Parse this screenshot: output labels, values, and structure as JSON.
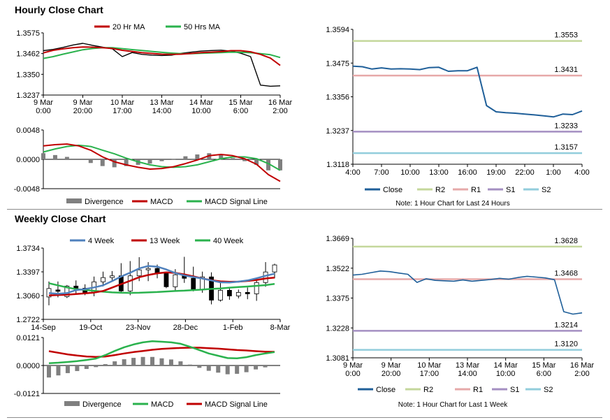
{
  "titles": {
    "hourly": "Hourly Close Chart",
    "weekly": "Weekly Close Chart"
  },
  "colors": {
    "close": "#1f5f99",
    "r2": "#c4d79b",
    "r1": "#e6a9a9",
    "s1": "#a48fc2",
    "s2": "#92cddc",
    "ma20": "#c00000",
    "ma50": "#2ab24d",
    "week4": "#4f81bd",
    "week13": "#c00000",
    "week40": "#2ab24d",
    "divergence": "#7f7f7f",
    "candle": "#000000"
  },
  "charts": {
    "hourly_price": {
      "type": "line",
      "ylim": [
        1.3237,
        1.3575
      ],
      "yticks": [
        "1.3575",
        "1.3462",
        "1.3350",
        "1.3237"
      ],
      "xticks": [
        {
          "l1": "9 Mar",
          "l2": "0:00"
        },
        {
          "l1": "9 Mar",
          "l2": "20:00"
        },
        {
          "l1": "10 Mar",
          "l2": "17:00"
        },
        {
          "l1": "13 Mar",
          "l2": "14:00"
        },
        {
          "l1": "14 Mar",
          "l2": "10:00"
        },
        {
          "l1": "15 Mar",
          "l2": "6:00"
        },
        {
          "l1": "16 Mar",
          "l2": "2:00"
        }
      ],
      "legend": [
        "20 Hr MA",
        "50 Hrs MA"
      ],
      "ma20": [
        1.3466,
        1.348,
        1.3488,
        1.3494,
        1.3498,
        1.3497,
        1.3494,
        1.349,
        1.348,
        1.3474,
        1.3467,
        1.3463,
        1.3459,
        1.3458,
        1.3459,
        1.3463,
        1.3468,
        1.347,
        1.3473,
        1.3478,
        1.3478,
        1.3472,
        1.3458,
        1.3438,
        1.3398
      ],
      "ma50": [
        1.3436,
        1.3446,
        1.3459,
        1.3471,
        1.3483,
        1.349,
        1.3494,
        1.3494,
        1.3489,
        1.3484,
        1.3479,
        1.3474,
        1.3469,
        1.3465,
        1.3462,
        1.3462,
        1.3464,
        1.3466,
        1.3468,
        1.347,
        1.3469,
        1.3467,
        1.3462,
        1.3456,
        1.3441
      ],
      "close": [
        1.3478,
        1.3485,
        1.3496,
        1.3509,
        1.3518,
        1.3507,
        1.3497,
        1.3488,
        1.3446,
        1.3468,
        1.3458,
        1.3454,
        1.3452,
        1.3454,
        1.3464,
        1.347,
        1.3476,
        1.3479,
        1.3481,
        1.3476,
        1.3464,
        1.3446,
        1.3291,
        1.3285,
        1.3287
      ]
    },
    "hourly_macd": {
      "type": "line",
      "ylim": [
        -0.0048,
        0.0048
      ],
      "yticks": [
        "0.0048",
        "0.0000",
        "-0.0048"
      ],
      "legend": [
        "Divergence",
        "MACD",
        "MACD Signal Line"
      ],
      "macd": [
        0.0022,
        0.0024,
        0.0025,
        0.0022,
        0.0015,
        0.0004,
        -0.0004,
        -0.0009,
        -0.0013,
        -0.0016,
        -0.0015,
        -0.0012,
        -0.0007,
        -0.0001,
        0.0006,
        0.0008,
        0.0006,
        0.0001,
        -0.0008,
        -0.0025,
        -0.0036
      ],
      "signal": [
        0.0012,
        0.0017,
        0.0021,
        0.0023,
        0.0021,
        0.0015,
        0.0009,
        0.0002,
        -0.0004,
        -0.0009,
        -0.0012,
        -0.0013,
        -0.0012,
        -0.0009,
        -0.0004,
        0.0001,
        0.0004,
        0.0004,
        0.0001,
        -0.0007,
        -0.0018
      ],
      "divergence": [
        0.001,
        0.0007,
        0.0004,
        -0.0001,
        -0.0006,
        -0.0011,
        -0.0013,
        -0.0011,
        -0.0009,
        -0.0007,
        -0.0003,
        0.0001,
        0.0005,
        0.0008,
        0.001,
        0.0007,
        0.0002,
        -0.0003,
        -0.0009,
        -0.0018,
        -0.0018
      ]
    },
    "hourly_24h": {
      "type": "line",
      "ylim": [
        1.3118,
        1.3594
      ],
      "yticks": [
        "1.3594",
        "1.3475",
        "1.3356",
        "1.3237",
        "1.3118"
      ],
      "xticks": [
        "4:00",
        "7:00",
        "10:00",
        "13:00",
        "16:00",
        "19:00",
        "22:00",
        "1:00",
        "4:00"
      ],
      "levels": [
        {
          "key": "r2",
          "value": 1.3553,
          "label": "1.3553"
        },
        {
          "key": "r1",
          "value": 1.3431,
          "label": "1.3431"
        },
        {
          "key": "s1",
          "value": 1.3233,
          "label": "1.3233"
        },
        {
          "key": "s2",
          "value": 1.3157,
          "label": "1.3157"
        }
      ],
      "close": [
        1.3464,
        1.3462,
        1.3454,
        1.3458,
        1.3454,
        1.3455,
        1.3454,
        1.3452,
        1.3459,
        1.346,
        1.3446,
        1.3448,
        1.3448,
        1.346,
        1.3325,
        1.3303,
        1.33,
        1.3298,
        1.3295,
        1.3292,
        1.3289,
        1.3285,
        1.3295,
        1.3293,
        1.3306
      ],
      "legend": [
        "Close",
        "R2",
        "R1",
        "S1",
        "S2"
      ],
      "note": "Note: 1 Hour Chart for Last 24 Hours"
    },
    "weekly_price": {
      "type": "line",
      "ylim": [
        1.2722,
        1.3734
      ],
      "yticks": [
        "1.3734",
        "1.3397",
        "1.3060",
        "1.2722"
      ],
      "xticks": [
        "14-Sep",
        "19-Oct",
        "23-Nov",
        "28-Dec",
        "1-Feb",
        "8-Mar"
      ],
      "legend": [
        "4 Week",
        "13 Week",
        "40 Week"
      ],
      "week4": [
        1.3095,
        1.3085,
        1.3095,
        1.3138,
        1.3152,
        1.3175,
        1.3205,
        1.3265,
        1.333,
        1.3385,
        1.3445,
        1.348,
        1.347,
        1.343,
        1.338,
        1.3345,
        1.3322,
        1.3302,
        1.3275,
        1.3248,
        1.3245,
        1.3258,
        1.3275,
        1.3305,
        1.334,
        1.337
      ],
      "week13": [
        1.3062,
        1.3068,
        1.3072,
        1.3082,
        1.3092,
        1.3102,
        1.3125,
        1.3172,
        1.3222,
        1.327,
        1.332,
        1.3352,
        1.3376,
        1.339,
        1.3382,
        1.336,
        1.3332,
        1.3302,
        1.3278,
        1.3262,
        1.3255,
        1.3258,
        1.3268,
        1.3282,
        1.3302,
        1.3315
      ],
      "week40": [
        1.3235,
        1.3205,
        1.3175,
        1.3152,
        1.314,
        1.3128,
        1.3115,
        1.3105,
        1.31,
        1.3098,
        1.31,
        1.3105,
        1.311,
        1.3118,
        1.3125,
        1.313,
        1.3138,
        1.3145,
        1.3155,
        1.3162,
        1.3172,
        1.318,
        1.3188,
        1.3198,
        1.3208,
        1.3225
      ],
      "candles": [
        [
          1.304,
          1.316,
          1.2922,
          1.326
        ],
        [
          1.314,
          1.312,
          1.3035,
          1.326
        ],
        [
          1.3045,
          1.3195,
          1.3025,
          1.321
        ],
        [
          1.3195,
          1.3165,
          1.309,
          1.3275
        ],
        [
          1.3165,
          1.3098,
          1.3065,
          1.322
        ],
        [
          1.31,
          1.3255,
          1.305,
          1.333
        ],
        [
          1.3255,
          1.3315,
          1.319,
          1.34
        ],
        [
          1.3315,
          1.334,
          1.326,
          1.3408
        ],
        [
          1.334,
          1.3125,
          1.3095,
          1.352
        ],
        [
          1.3125,
          1.334,
          1.3065,
          1.355
        ],
        [
          1.334,
          1.3425,
          1.3265,
          1.3605
        ],
        [
          1.3425,
          1.3445,
          1.3265,
          1.3535
        ],
        [
          1.3445,
          1.3375,
          1.3305,
          1.35
        ],
        [
          1.3375,
          1.3185,
          1.3165,
          1.34
        ],
        [
          1.3185,
          1.3355,
          1.3135,
          1.3435
        ],
        [
          1.3355,
          1.3305,
          1.324,
          1.361
        ],
        [
          1.3305,
          1.3145,
          1.312,
          1.347
        ],
        [
          1.3145,
          1.3325,
          1.31,
          1.34
        ],
        [
          1.3325,
          1.2995,
          1.2935,
          1.339
        ],
        [
          1.2995,
          1.3135,
          1.2975,
          1.3255
        ],
        [
          1.3135,
          1.3055,
          1.3,
          1.3175
        ],
        [
          1.3055,
          1.3105,
          1.302,
          1.3145
        ],
        [
          1.3105,
          1.3085,
          1.3008,
          1.3175
        ],
        [
          1.3085,
          1.3245,
          1.2985,
          1.3305
        ],
        [
          1.3245,
          1.3395,
          1.3185,
          1.3535
        ],
        [
          1.3395,
          1.3495,
          1.3305,
          1.3512
        ]
      ]
    },
    "weekly_macd": {
      "type": "line",
      "ylim": [
        -0.0121,
        0.0121
      ],
      "yticks": [
        "0.0121",
        "0.0000",
        "-0.0121"
      ],
      "legend": [
        "Divergence",
        "MACD",
        "MACD Signal Line"
      ],
      "macd": [
        0.001,
        0.0012,
        0.0015,
        0.0019,
        0.0024,
        0.003,
        0.0045,
        0.0063,
        0.0079,
        0.0091,
        0.01,
        0.0105,
        0.0103,
        0.01,
        0.0094,
        0.0081,
        0.0067,
        0.0052,
        0.0042,
        0.0032,
        0.0031,
        0.0036,
        0.0045,
        0.0052,
        0.0058
      ],
      "signal": [
        0.0062,
        0.0055,
        0.0048,
        0.0043,
        0.0039,
        0.0037,
        0.0039,
        0.0045,
        0.0052,
        0.0058,
        0.0063,
        0.0068,
        0.0072,
        0.0074,
        0.0076,
        0.0077,
        0.0077,
        0.0075,
        0.0073,
        0.007,
        0.0067,
        0.0065,
        0.0062,
        0.006,
        0.0059
      ],
      "divergence": [
        -0.0052,
        -0.0043,
        -0.0033,
        -0.0024,
        -0.0015,
        -0.0007,
        0.0006,
        0.0018,
        0.0027,
        0.0033,
        0.0037,
        0.0037,
        0.0031,
        0.0026,
        0.0018,
        0.0004,
        -0.001,
        -0.0023,
        -0.0031,
        -0.0038,
        -0.0036,
        -0.0029,
        -0.0017,
        -0.0008,
        -0.0001
      ],
      "start_offset": 0
    },
    "weekly_1w": {
      "type": "line",
      "ylim": [
        1.3081,
        1.3669
      ],
      "yticks": [
        "1.3669",
        "1.3522",
        "1.3375",
        "1.3228",
        "1.3081"
      ],
      "xticks": [
        {
          "l1": "9 Mar",
          "l2": "0:00"
        },
        {
          "l1": "9 Mar",
          "l2": "20:00"
        },
        {
          "l1": "10 Mar",
          "l2": "17:00"
        },
        {
          "l1": "13 Mar",
          "l2": "14:00"
        },
        {
          "l1": "14 Mar",
          "l2": "10:00"
        },
        {
          "l1": "15 Mar",
          "l2": "6:00"
        },
        {
          "l1": "16 Mar",
          "l2": "2:00"
        }
      ],
      "levels": [
        {
          "key": "r2",
          "value": 1.3628,
          "label": "1.3628"
        },
        {
          "key": "r1",
          "value": 1.3468,
          "label": "1.3468"
        },
        {
          "key": "s1",
          "value": 1.3214,
          "label": "1.3214"
        },
        {
          "key": "s2",
          "value": 1.312,
          "label": "1.3120"
        }
      ],
      "close": [
        1.3488,
        1.3492,
        1.35,
        1.3508,
        1.3505,
        1.3498,
        1.3492,
        1.3452,
        1.347,
        1.3462,
        1.346,
        1.3458,
        1.3464,
        1.3458,
        1.3462,
        1.3466,
        1.3472,
        1.3468,
        1.3476,
        1.3482,
        1.3478,
        1.3474,
        1.3465,
        1.3308,
        1.3296,
        1.3302
      ],
      "legend": [
        "Close",
        "R2",
        "R1",
        "S1",
        "S2"
      ],
      "note": "Note: 1 Hour Chart for Last 1 Week"
    }
  }
}
